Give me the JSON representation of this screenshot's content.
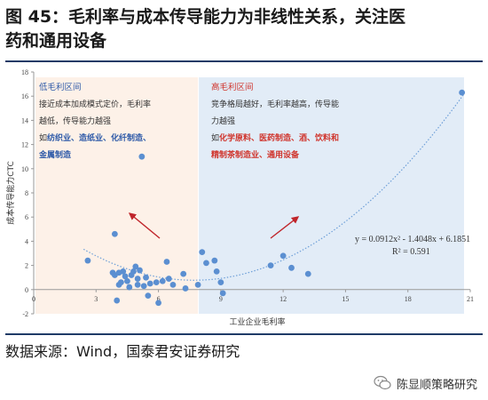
{
  "title": {
    "line1": "图 45：毛利率与成本传导能力为非线性关系，关注医",
    "line2": "药和通用设备"
  },
  "source": "数据来源：Wind，国泰君安证券研究",
  "watermark": {
    "icon": "wechat-icon",
    "text": "陈显顺策略研究"
  },
  "annotations": {
    "low": {
      "header": "低毛利区间",
      "line1": "接近成本加成模式定价，毛利率",
      "line2": "越低，传导能力越强",
      "line3_prefix": "如",
      "line3_highlight": "纺织业、造纸业、化纤制造、",
      "line4_highlight": "金属制造"
    },
    "high": {
      "header": "高毛利区间",
      "line1": "竞争格局越好，毛利率越高，传导能",
      "line2": "力越强",
      "line3_prefix": "如",
      "line3_highlight": "化学原料、医药制造、酒、饮料和",
      "line4_highlight": "精制茶制造业、通用设备"
    },
    "equation": "y = 0.0912x² - 1.4048x + 6.1851",
    "r2": "R² = 0.591"
  },
  "colors": {
    "low_region": "#fdf1e8",
    "high_region": "#e2ecf7",
    "point": "#5b8fd1",
    "trend": "#6fa0d8",
    "arrow": "#c0252b",
    "rule": "#1f3b67"
  },
  "chart_data": {
    "type": "scatter",
    "xlabel": "工业企业毛利率",
    "ylabel": "成本传导能力CTC",
    "xlim": [
      0,
      21
    ],
    "ylim": [
      -2,
      18
    ],
    "x_ticks": [
      "0",
      "3",
      "6",
      "9",
      "12",
      "15",
      "18",
      "21"
    ],
    "y_ticks": [
      "-2",
      "0",
      "2",
      "4",
      "6",
      "8",
      "10",
      "12",
      "14",
      "16",
      "18"
    ],
    "low_region_x": [
      0,
      7.9
    ],
    "high_region_x": [
      7.9,
      21
    ],
    "points": [
      {
        "x": 2.6,
        "y": 2.4
      },
      {
        "x": 3.8,
        "y": 1.4
      },
      {
        "x": 3.9,
        "y": 1.2
      },
      {
        "x": 4.1,
        "y": 1.4
      },
      {
        "x": 4.1,
        "y": 0.4
      },
      {
        "x": 4.2,
        "y": 0.6
      },
      {
        "x": 4.3,
        "y": 1.5
      },
      {
        "x": 4.4,
        "y": 1.1
      },
      {
        "x": 4.5,
        "y": 0.7
      },
      {
        "x": 4.6,
        "y": 0.2
      },
      {
        "x": 4.7,
        "y": 1.2
      },
      {
        "x": 4.8,
        "y": 1.5
      },
      {
        "x": 4.9,
        "y": 1.9
      },
      {
        "x": 5.0,
        "y": 0.9
      },
      {
        "x": 5.0,
        "y": 0.4
      },
      {
        "x": 5.1,
        "y": 1.6
      },
      {
        "x": 5.2,
        "y": 11.0
      },
      {
        "x": 5.3,
        "y": 0.3
      },
      {
        "x": 5.4,
        "y": 1.0
      },
      {
        "x": 5.5,
        "y": -0.5
      },
      {
        "x": 5.6,
        "y": 0.5
      },
      {
        "x": 4.0,
        "y": -0.9
      },
      {
        "x": 3.9,
        "y": 4.6
      },
      {
        "x": 6.0,
        "y": -1.1
      },
      {
        "x": 5.9,
        "y": 0.6
      },
      {
        "x": 6.2,
        "y": 0.7
      },
      {
        "x": 6.4,
        "y": 2.3
      },
      {
        "x": 6.5,
        "y": 0.9
      },
      {
        "x": 6.7,
        "y": 0.4
      },
      {
        "x": 7.2,
        "y": 1.3
      },
      {
        "x": 7.3,
        "y": 0.1
      },
      {
        "x": 7.9,
        "y": 0.4
      },
      {
        "x": 8.1,
        "y": 3.1
      },
      {
        "x": 8.3,
        "y": 2.2
      },
      {
        "x": 8.7,
        "y": 2.4
      },
      {
        "x": 8.8,
        "y": 1.5
      },
      {
        "x": 9.0,
        "y": 0.6
      },
      {
        "x": 9.1,
        "y": -0.3
      },
      {
        "x": 11.4,
        "y": 2.0
      },
      {
        "x": 12.0,
        "y": 2.8
      },
      {
        "x": 12.4,
        "y": 1.8
      },
      {
        "x": 13.2,
        "y": 1.3
      },
      {
        "x": 20.6,
        "y": 16.3
      }
    ],
    "trendline": {
      "type": "polynomial",
      "coefficients": [
        0.0912,
        -1.4048,
        6.1851
      ]
    },
    "grid": false
  }
}
